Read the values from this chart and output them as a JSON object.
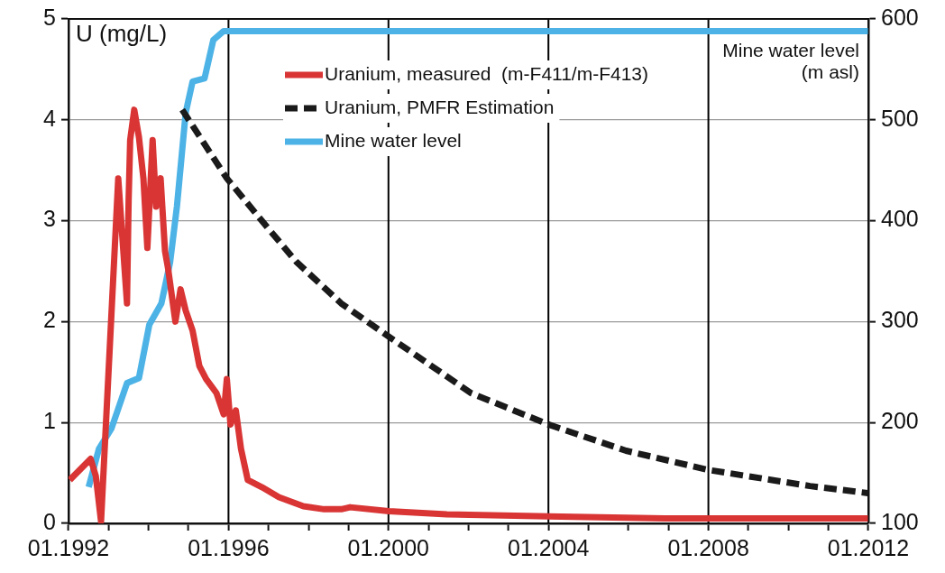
{
  "chart_data": {
    "type": "line",
    "ylabel": "U (mg/L)",
    "y2label": "Mine water level\n(m asl)",
    "marker": "none",
    "grid": "y",
    "legend": "top",
    "xlim": [
      "1992-01",
      "2012-01"
    ],
    "xticks": [
      {
        "value": "1992-01",
        "label": "01.1992"
      },
      {
        "value": "1993-01",
        "label": null
      },
      {
        "value": "1994-01",
        "label": null
      },
      {
        "value": "1995-01",
        "label": null
      },
      {
        "value": "1996-01",
        "label": "01.1996"
      },
      {
        "value": "1997-01",
        "label": null
      },
      {
        "value": "1998-01",
        "label": null
      },
      {
        "value": "1999-01",
        "label": null
      },
      {
        "value": "2000-01",
        "label": "01.2000"
      },
      {
        "value": "2001-01",
        "label": null
      },
      {
        "value": "2002-01",
        "label": null
      },
      {
        "value": "2003-01",
        "label": null
      },
      {
        "value": "2004-01",
        "label": "01.2004"
      },
      {
        "value": "2005-01",
        "label": null
      },
      {
        "value": "2006-01",
        "label": null
      },
      {
        "value": "2007-01",
        "label": null
      },
      {
        "value": "2008-01",
        "label": "01.2008"
      },
      {
        "value": "2009-01",
        "label": null
      },
      {
        "value": "2010-01",
        "label": null
      },
      {
        "value": "2011-01",
        "label": null
      },
      {
        "value": "2012-01",
        "label": "01.2012"
      }
    ],
    "ylim": [
      0,
      5
    ],
    "yticks": [
      0,
      1,
      2,
      3,
      4,
      5
    ],
    "y2lim": [
      100,
      600
    ],
    "y2ticks": [
      100,
      200,
      300,
      400,
      500,
      600
    ],
    "ref_lines": [
      {
        "axis": "x",
        "value": "1996-01",
        "color": "#000000"
      },
      {
        "axis": "x",
        "value": "2000-01",
        "color": "#000000"
      },
      {
        "axis": "x",
        "value": "2004-01",
        "color": "#000000"
      },
      {
        "axis": "x",
        "value": "2008-01",
        "color": "#000000"
      }
    ],
    "series": [
      {
        "name": "Uranium, measured  (m-F411/m-F413)",
        "color": "#d93535",
        "line_style": "solid",
        "x": [
          "1992-01-12",
          "1992-07-21",
          "1992-09-06",
          "1992-10-24",
          "1993-03-30",
          "1993-06-18",
          "1993-07-03",
          "1993-07-17",
          "1993-08-23",
          "1993-10-05",
          "1993-11-15",
          "1993-12-21",
          "1994-02-07",
          "1994-03-11",
          "1994-04-21",
          "1994-05-31",
          "1994-06-29",
          "1994-09-03",
          "1994-10-20",
          "1994-12-06",
          "1995-02-07",
          "1995-04-10",
          "1995-06-11",
          "1995-09-14",
          "1995-11-18",
          "1995-12-17",
          "1996-01-19",
          "1996-03-08",
          "1996-04-24",
          "1996-06-25",
          "1996-10-31",
          "1997-04-06",
          "1997-11-15",
          "1998-05-23",
          "1998-10-27",
          "1999-01-16",
          "2000-01-05",
          "2001-06-18",
          "2004-01-01",
          "2006-11-26",
          "2011-12-28"
        ],
        "values": [
          0.43,
          0.64,
          0.47,
          0.02,
          3.42,
          2.18,
          3.21,
          3.8,
          4.1,
          3.83,
          3.42,
          2.73,
          3.8,
          3.14,
          3.42,
          2.7,
          2.52,
          2.0,
          2.32,
          2.11,
          1.91,
          1.56,
          1.43,
          1.29,
          1.08,
          1.43,
          0.98,
          1.12,
          0.74,
          0.43,
          0.36,
          0.26,
          0.17,
          0.14,
          0.14,
          0.16,
          0.12,
          0.09,
          0.07,
          0.05,
          0.05
        ]
      },
      {
        "name": "Uranium, PMFR Estimation",
        "color": "#1a1a1a",
        "line_style": "dashed",
        "x": [
          "1994-11-04",
          "1995-12-17",
          "1996-10-31",
          "1997-09-14",
          "1998-10-27",
          "2000-01-05",
          "2002-01-27",
          "2004-01-01",
          "2005-12-10",
          "2008-01-01",
          "2010-07-17",
          "2011-12-28"
        ],
        "values": [
          4.1,
          3.42,
          3.0,
          2.59,
          2.18,
          1.85,
          1.29,
          0.98,
          0.72,
          0.53,
          0.37,
          0.3
        ]
      },
      {
        "name": "Mine water level",
        "color": "#4db3e6",
        "line_style": "solid",
        "axis": "y2",
        "x": [
          "1992-07-03",
          "1992-10-05",
          "1993-01-27",
          "1993-06-18",
          "1993-10-05",
          "1994-01-08",
          "1994-04-28",
          "1994-07-17",
          "1994-09-17",
          "1994-12-06",
          "1995-02-07",
          "1995-05-27",
          "1995-08-15",
          "1995-11-18",
          "2011-12-28"
        ],
        "values": [
          136,
          174,
          194,
          239,
          244,
          297,
          318,
          359,
          414,
          507,
          538,
          541,
          579,
          588,
          588
        ]
      }
    ]
  }
}
